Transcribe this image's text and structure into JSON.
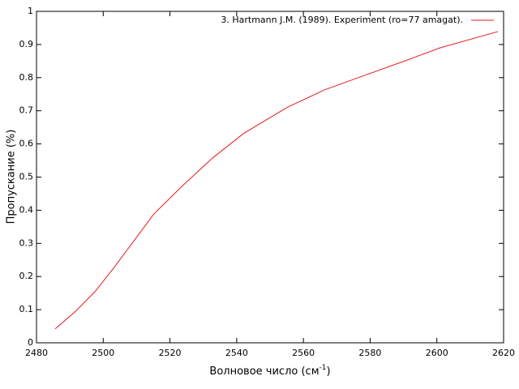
{
  "chart_data": {
    "type": "line",
    "x_label": "Волновое число (см",
    "x_label_sup": "-1",
    "x_label_end": ")",
    "y_label": "Пропускание (%)",
    "x": [
      2485.6,
      2491.7,
      2497.5,
      2503.1,
      2515.2,
      2523.8,
      2532.7,
      2542.0,
      2554.9,
      2566.3,
      2578.4,
      2590.0,
      2601.0,
      2618.3
    ],
    "series": [
      {
        "name": "3. Hartmann J.M. (1989). Experiment (ro=77 amagat).",
        "color": "#e41a1c",
        "values": [
          0.042,
          0.095,
          0.154,
          0.225,
          0.389,
          0.474,
          0.557,
          0.631,
          0.709,
          0.763,
          0.807,
          0.849,
          0.89,
          0.939
        ]
      }
    ],
    "xlim": [
      2480,
      2620
    ],
    "xticks": [
      2480,
      2500,
      2520,
      2540,
      2560,
      2580,
      2600,
      2620
    ],
    "ylim": [
      0,
      1
    ],
    "yticks": [
      0,
      0.1,
      0.2,
      0.3,
      0.4,
      0.5,
      0.6,
      0.7,
      0.8,
      0.9,
      1
    ],
    "grid": false,
    "legend_position": "top-right"
  }
}
